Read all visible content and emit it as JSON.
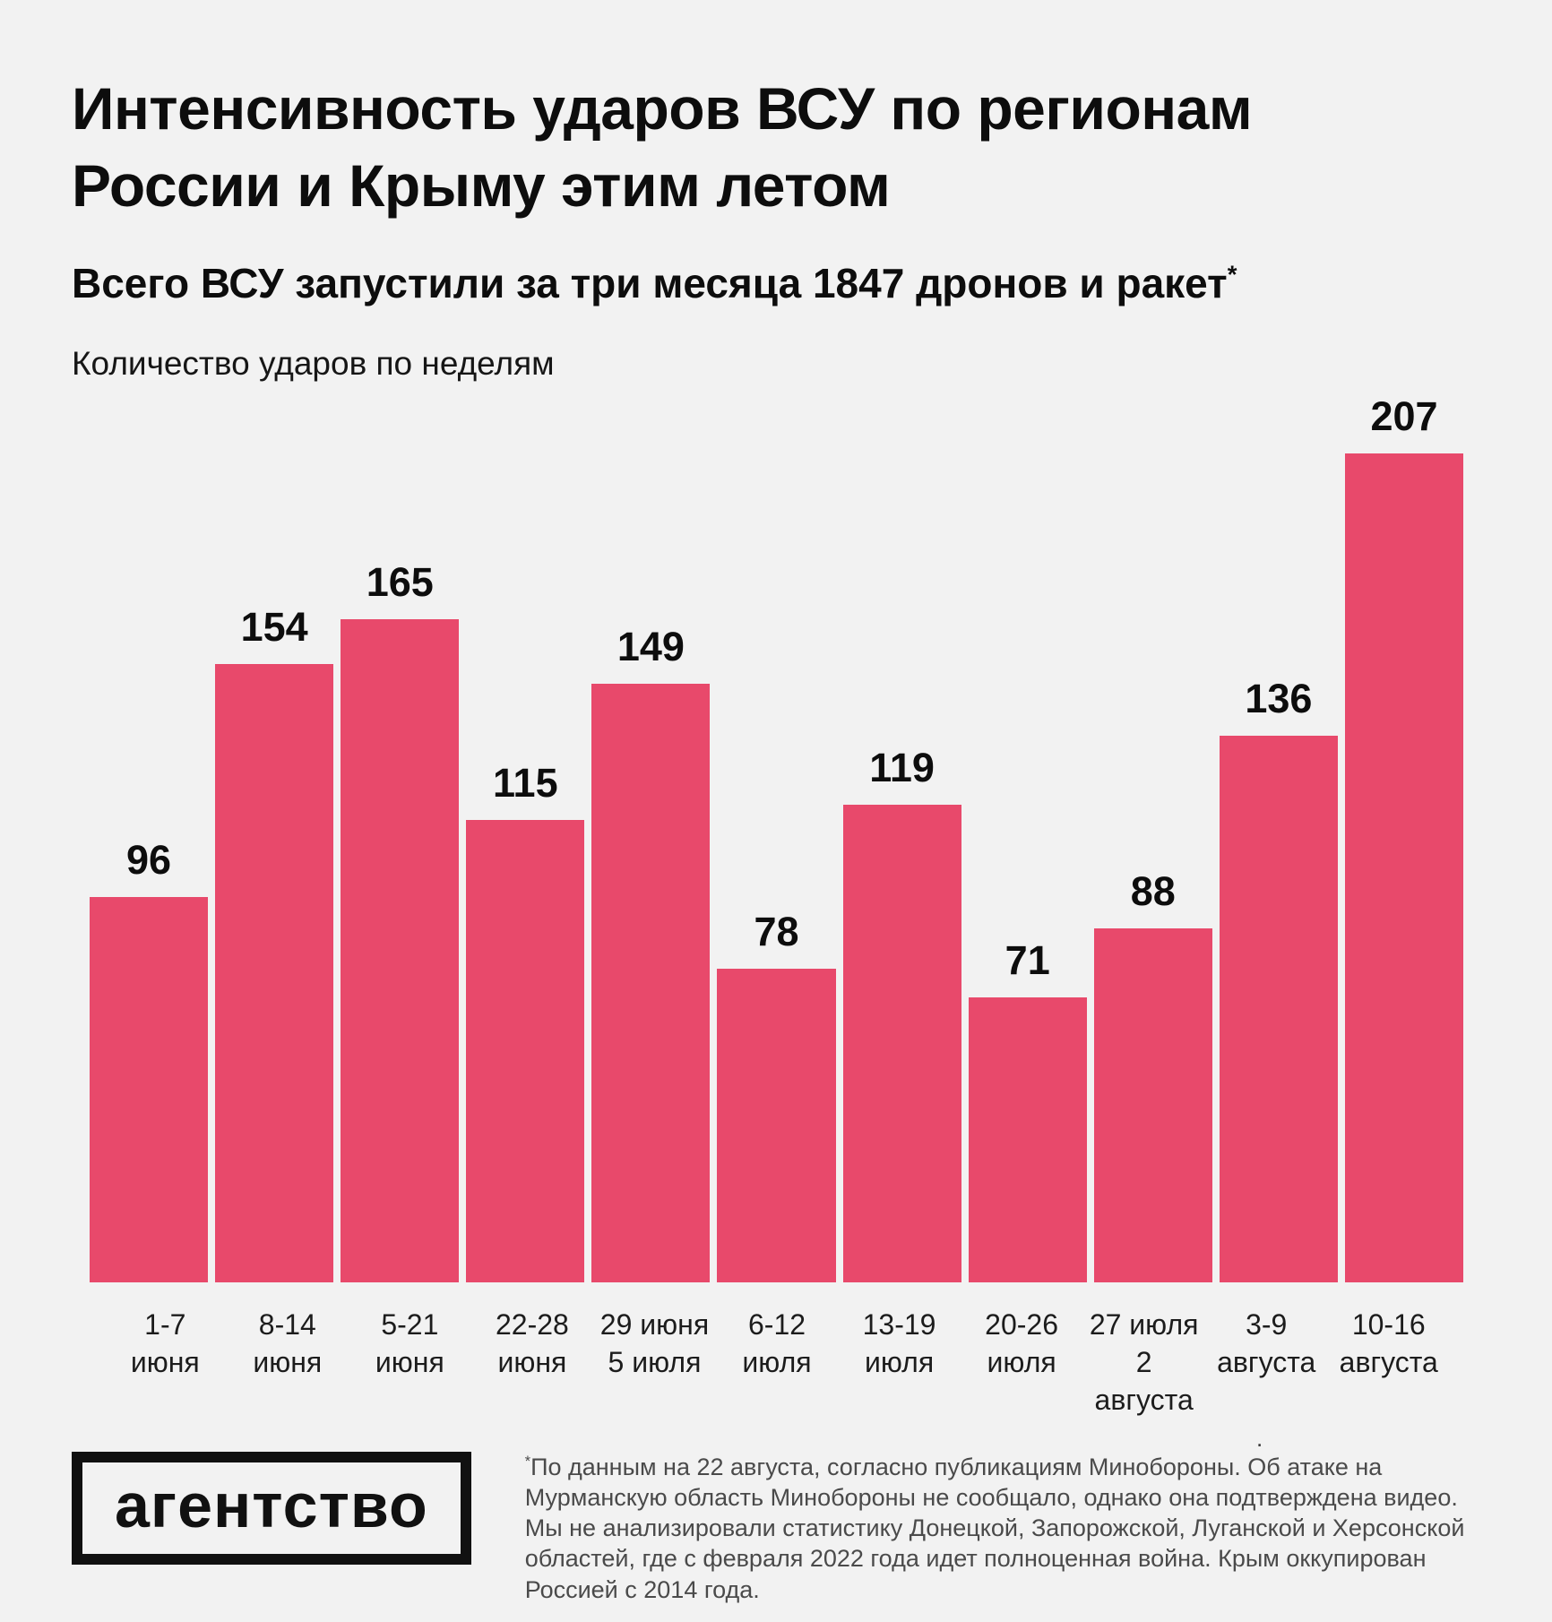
{
  "page": {
    "background_color": "#F2F2F2",
    "text_color": "#0D0D0D"
  },
  "header": {
    "title_line1": "Интенсивность ударов ВСУ по регионам",
    "title_line2": "России и Крыму этим летом",
    "subtitle": "Всего ВСУ запустили за три месяца 1847 дронов и ракет",
    "subtitle_mark": "*",
    "chart_label": "Количество ударов по неделям"
  },
  "chart_data": {
    "type": "bar",
    "title": "Интенсивность ударов ВСУ по регионам России и Крыму этим летом",
    "subtitle": "Всего ВСУ запустили за три месяца 1847 дронов и ракет*",
    "ylabel": "Количество ударов по неделям",
    "categories": [
      "1-7\nиюня",
      "8-14\nиюня",
      "5-21\nиюня",
      "22-28\nиюня",
      "29 июня\n5 июля",
      "6-12\nиюля",
      "13-19\nиюля",
      "20-26\nиюля",
      "27 июля\n2 августа",
      "3-9\nавгуста",
      "10-16\nавгуста"
    ],
    "values": [
      96,
      154,
      165,
      115,
      149,
      78,
      119,
      71,
      88,
      136,
      207
    ],
    "ylim": [
      0,
      207
    ],
    "bar_color": "#E8496B",
    "grid": false,
    "legend": null,
    "data_labels": true
  },
  "stray_dot": ".",
  "footer": {
    "logo_text": "агентство",
    "footnote_mark": "*",
    "footnote": "По данным на 22 августа, согласно публикациям Минобороны. Об атаке на Мурманскую область Минобороны не сообщало, однако она подтверждена видео. Мы не анализировали статистику Донецкой, Запорожской, Луганской и Херсонской областей, где с февраля 2022 года идет полноценная война. Крым оккупирован Россией с 2014 года."
  }
}
